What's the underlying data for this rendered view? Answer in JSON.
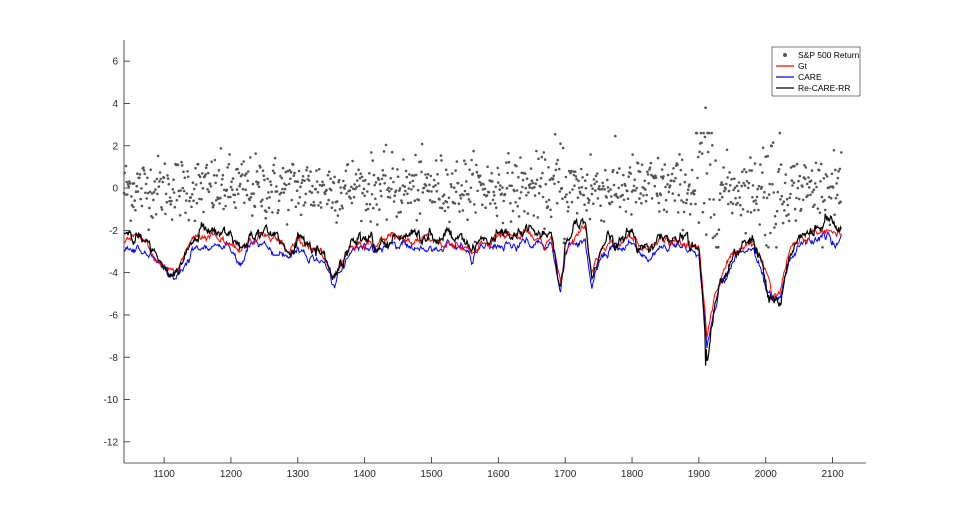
{
  "chart_data": {
    "type": "line",
    "title": "",
    "xlabel": "",
    "ylabel": "",
    "xlim": [
      1040,
      2150
    ],
    "ylim": [
      -13,
      7
    ],
    "xticks": [
      1100,
      1200,
      1300,
      1400,
      1500,
      1600,
      1700,
      1800,
      1900,
      2000,
      2100
    ],
    "yticks": [
      -12,
      -10,
      -8,
      -6,
      -4,
      -2,
      0,
      2,
      4,
      6
    ],
    "grid": false,
    "legend_location": "top-right",
    "series": [
      {
        "name": "S&P 500 Return",
        "kind": "scatter",
        "color": "#555555"
      },
      {
        "name": "Gt",
        "kind": "line",
        "color": "#ff0000"
      },
      {
        "name": "CARE",
        "kind": "line",
        "color": "#0000ff"
      },
      {
        "name": "Re-CARE-RR",
        "kind": "line",
        "color": "#000000"
      }
    ],
    "x_start": 1040,
    "x_end": 2113,
    "baseline_var": [
      [
        1040,
        -2.6
      ],
      [
        1060,
        -2.4
      ],
      [
        1080,
        -3.0
      ],
      [
        1100,
        -3.6
      ],
      [
        1115,
        -3.9
      ],
      [
        1130,
        -3.2
      ],
      [
        1145,
        -2.5
      ],
      [
        1160,
        -2.1
      ],
      [
        1180,
        -2.4
      ],
      [
        1200,
        -2.7
      ],
      [
        1215,
        -3.1
      ],
      [
        1230,
        -2.4
      ],
      [
        1250,
        -2.3
      ],
      [
        1270,
        -2.6
      ],
      [
        1285,
        -3.0
      ],
      [
        1300,
        -2.5
      ],
      [
        1320,
        -2.8
      ],
      [
        1340,
        -3.3
      ],
      [
        1355,
        -4.1
      ],
      [
        1365,
        -3.6
      ],
      [
        1380,
        -2.6
      ],
      [
        1400,
        -2.4
      ],
      [
        1420,
        -2.7
      ],
      [
        1440,
        -2.3
      ],
      [
        1455,
        -2.4
      ],
      [
        1470,
        -2.5
      ],
      [
        1490,
        -2.5
      ],
      [
        1510,
        -2.6
      ],
      [
        1530,
        -2.4
      ],
      [
        1545,
        -2.6
      ],
      [
        1560,
        -3.1
      ],
      [
        1575,
        -2.6
      ],
      [
        1600,
        -2.4
      ],
      [
        1620,
        -2.3
      ],
      [
        1640,
        -2.1
      ],
      [
        1660,
        -2.3
      ],
      [
        1680,
        -2.6
      ],
      [
        1693,
        -4.6
      ],
      [
        1700,
        -3.0
      ],
      [
        1715,
        -2.3
      ],
      [
        1730,
        -2.0
      ],
      [
        1740,
        -4.2
      ],
      [
        1755,
        -2.8
      ],
      [
        1770,
        -2.4
      ],
      [
        1780,
        -2.7
      ],
      [
        1795,
        -2.2
      ],
      [
        1810,
        -2.6
      ],
      [
        1825,
        -3.0
      ],
      [
        1840,
        -2.4
      ],
      [
        1860,
        -2.4
      ],
      [
        1880,
        -2.5
      ],
      [
        1900,
        -2.8
      ],
      [
        1905,
        -4.5
      ],
      [
        1912,
        -7.0
      ],
      [
        1922,
        -5.4
      ],
      [
        1935,
        -4.0
      ],
      [
        1950,
        -3.2
      ],
      [
        1965,
        -2.8
      ],
      [
        1980,
        -2.5
      ],
      [
        1995,
        -3.6
      ],
      [
        2010,
        -5.0
      ],
      [
        2022,
        -4.8
      ],
      [
        2035,
        -3.1
      ],
      [
        2050,
        -2.4
      ],
      [
        2065,
        -2.3
      ],
      [
        2080,
        -2.1
      ],
      [
        2095,
        -2.0
      ],
      [
        2113,
        -2.2
      ]
    ]
  }
}
